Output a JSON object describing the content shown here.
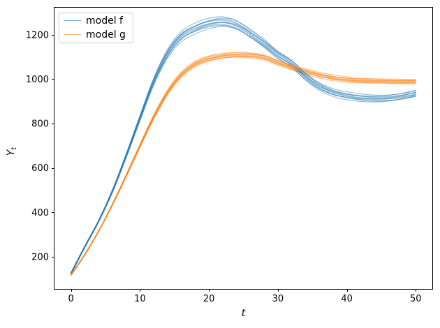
{
  "chart_data": {
    "type": "line",
    "title": "",
    "xlabel": "t",
    "ylabel": "Y_t",
    "xlim": [
      -2.5,
      52.5
    ],
    "ylim": [
      52,
      1325
    ],
    "xticks": [
      0,
      10,
      20,
      30,
      40,
      50
    ],
    "yticks": [
      200,
      400,
      600,
      800,
      1000,
      1200
    ],
    "grid": false,
    "legend_position": "upper left",
    "x": [
      0,
      2,
      4,
      6,
      8,
      10,
      12,
      14,
      16,
      18,
      20,
      22,
      24,
      26,
      28,
      30,
      32,
      34,
      36,
      38,
      40,
      42,
      44,
      46,
      48,
      50
    ],
    "series": [
      {
        "name": "model f",
        "color": "#1f77b4",
        "ensemble_runs": 10,
        "spread": 20,
        "wiggle": 5,
        "alpha": 0.5,
        "values": [
          125,
          245,
          360,
          495,
          655,
          825,
          990,
          1115,
          1192,
          1228,
          1250,
          1258,
          1243,
          1205,
          1160,
          1110,
          1070,
          1012,
          968,
          940,
          925,
          916,
          912,
          914,
          922,
          935
        ]
      },
      {
        "name": "model g",
        "color": "#ff7f0e",
        "ensemble_runs": 10,
        "spread": 13,
        "wiggle": 4,
        "alpha": 0.5,
        "values": [
          118,
          210,
          315,
          435,
          565,
          700,
          830,
          940,
          1020,
          1068,
          1092,
          1104,
          1109,
          1107,
          1098,
          1075,
          1053,
          1034,
          1018,
          1006,
          998,
          993,
          991,
          990,
          989,
          989
        ]
      }
    ],
    "colors": {
      "spine": "#000000",
      "tick": "#000000",
      "legend_border": "#cccccc",
      "background": "#ffffff"
    }
  }
}
